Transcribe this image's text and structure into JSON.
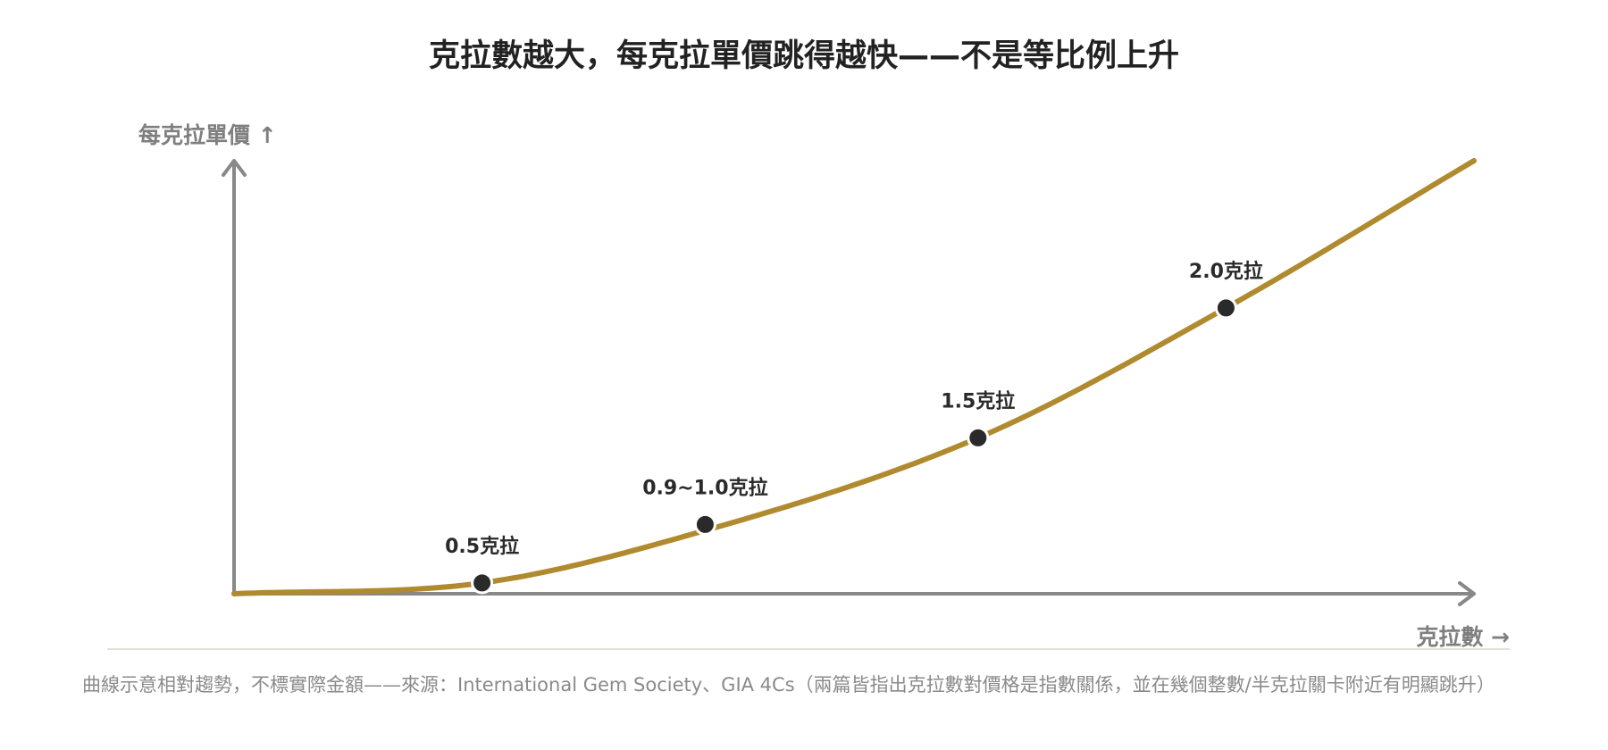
{
  "chart_data": {
    "type": "line",
    "title": "克拉數越大，每克拉單價跳得越快——不是等比例上升",
    "ylabel": "每克拉單價 ↑",
    "xlabel": "克拉數 →",
    "series": [
      {
        "values": [
          0.0,
          0.025,
          0.13,
          0.36,
          0.66,
          1.0
        ]
      }
    ],
    "x": [
      0.0,
      0.5,
      0.9,
      1.5,
      2.0,
      2.5
    ],
    "points": [
      {
        "label": "0.5克拉",
        "x": 0.5,
        "y": 0.025
      },
      {
        "label": "0.9~1.0克拉",
        "x": 0.95,
        "y": 0.16
      },
      {
        "label": "1.5克拉",
        "x": 1.5,
        "y": 0.36
      },
      {
        "label": "2.0克拉",
        "x": 2.0,
        "y": 0.66
      }
    ],
    "xlim": [
      0.0,
      2.5
    ],
    "ylim": [
      0.0,
      1.0
    ],
    "grid": false,
    "footnote": "曲線示意相對趨勢，不標實際金額——來源：International Gem Society、GIA 4Cs（兩篇皆指出克拉數對價格是指數關係，並在幾個整數/半克拉關卡附近有明顯跳升）"
  },
  "colors": {
    "curve": "#b08a2e",
    "axis": "#888888",
    "point": "#2a2a2a",
    "divider": "#d9d6c8"
  }
}
